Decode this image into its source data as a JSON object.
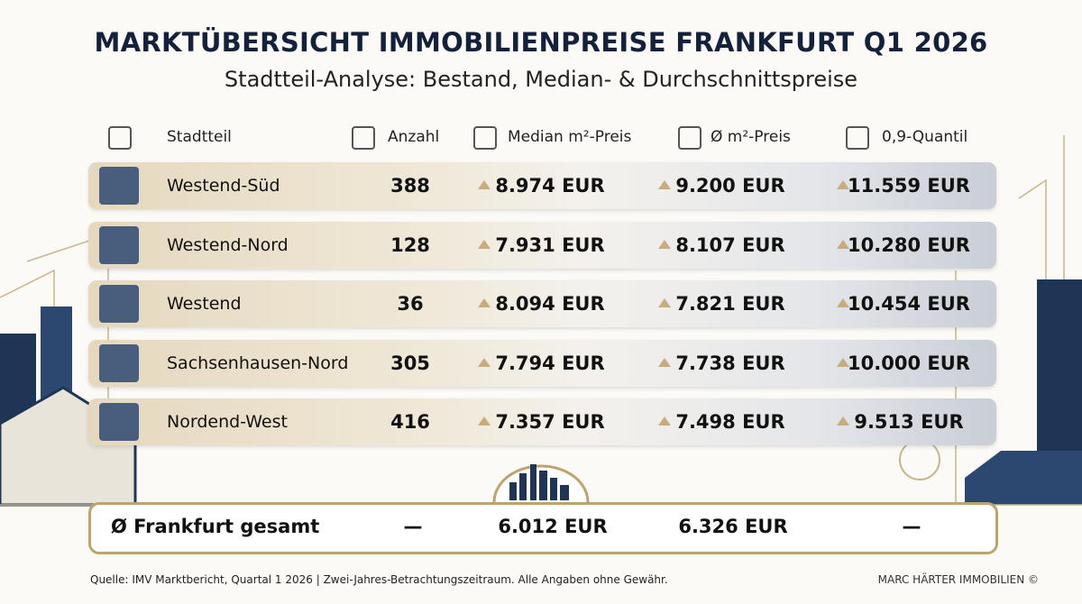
{
  "header": {
    "title": "MARKTÜBERSICHT IMMOBILIENPREISE FRANKFURT Q1 2026",
    "subtitle": "Stadtteil-Analyse: Bestand, Median- & Durchschnittspreise"
  },
  "table": {
    "columns": [
      "Stadtteil",
      "Anzahl",
      "Median m²-Preis",
      "Ø m²-Preis",
      "0,9-Quantil"
    ],
    "rows": [
      [
        "Westend-Süd",
        "388",
        "8.974 EUR",
        "9.200 EUR",
        "11.559 EUR"
      ],
      [
        "Westend-Nord",
        "128",
        "7.931 EUR",
        "8.107 EUR",
        "10.280 EUR"
      ],
      [
        "Westend",
        "36",
        "8.094 EUR",
        "7.821 EUR",
        "10.454 EUR"
      ],
      [
        "Sachsenhausen-Nord",
        "305",
        "7.794 EUR",
        "7.738 EUR",
        "10.000 EUR"
      ],
      [
        "Nordend-West",
        "416",
        "7.357 EUR",
        "7.498 EUR",
        "9.513 EUR"
      ]
    ],
    "total": [
      "Ø Frankfurt gesamt",
      "—",
      "6.012 EUR",
      "6.326 EUR",
      "—"
    ]
  },
  "footer": {
    "source": "Quelle: IMV Marktbericht, Quartal 1 2026 | Zwei-Jahres-Betrachtungszeitraum. Alle Angaben ohne Gewähr.",
    "brand": "MARC HÄRTER IMMOBILIEN ©"
  }
}
